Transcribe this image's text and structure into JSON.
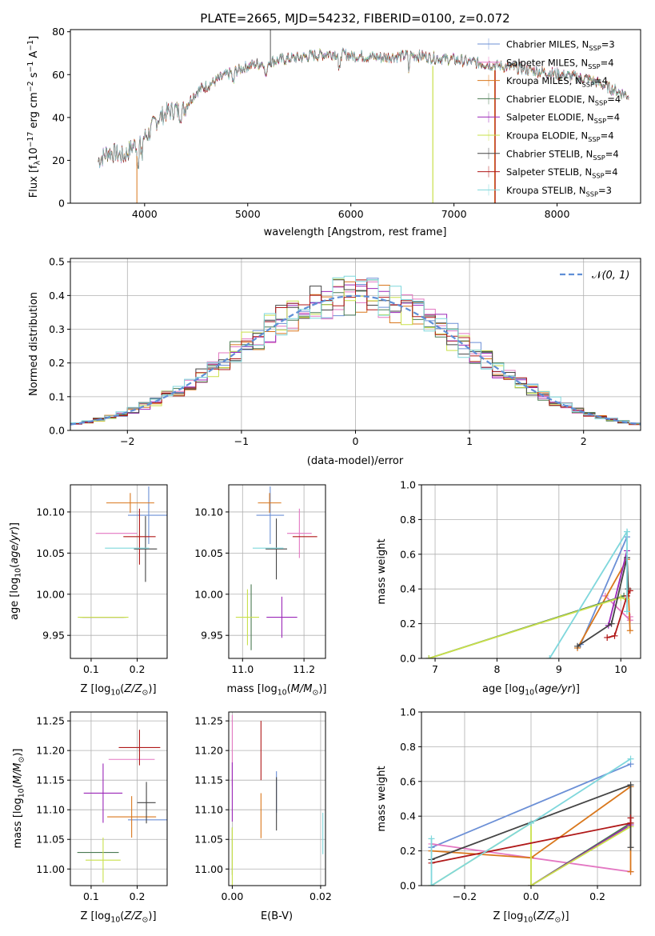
{
  "figure": {
    "title": "PLATE=2665, MJD=54232, FIBERID=0100, z=0.072"
  },
  "colors": {
    "Chabrier MILES": "#6b8fd6",
    "Salpeter MILES": "#e377c2",
    "Kroupa MILES": "#d9771c",
    "Chabrier ELODIE": "#4a7a52",
    "Salpeter ELODIE": "#9b27b8",
    "Kroupa ELODIE": "#c9e04a",
    "Chabrier STELIB": "#444444",
    "Salpeter STELIB": "#b01818",
    "Kroupa STELIB": "#7fd7dc"
  },
  "chart_data": [
    {
      "id": "spectrum",
      "type": "line",
      "xlabel": "wavelength [Angstrom, rest frame]",
      "ylabel": "Flux [f_λ 10^-17 erg cm^-2 s^-1 A^-1]",
      "xlim": [
        3280,
        8810
      ],
      "ylim": [
        0,
        81
      ],
      "xticks": [
        4000,
        5000,
        6000,
        7000,
        8000
      ],
      "yticks": [
        0,
        20,
        40,
        60,
        80
      ],
      "grid": false,
      "legend_position": "top-right",
      "legend": [
        {
          "name": "Chabrier MILES",
          "nssp": "3"
        },
        {
          "name": "Salpeter MILES",
          "nssp": "4"
        },
        {
          "name": "Kroupa MILES",
          "nssp": "4"
        },
        {
          "name": "Chabrier ELODIE",
          "nssp": "4"
        },
        {
          "name": "Salpeter ELODIE",
          "nssp": "4"
        },
        {
          "name": "Kroupa ELODIE",
          "nssp": "4"
        },
        {
          "name": "Chabrier STELIB",
          "nssp": "4"
        },
        {
          "name": "Salpeter STELIB",
          "nssp": "4"
        },
        {
          "name": "Kroupa STELIB",
          "nssp": "3"
        }
      ],
      "continuum": {
        "wavelength": [
          3550,
          3650,
          3800,
          3900,
          4000,
          4050,
          4100,
          4200,
          4300,
          4350,
          4500,
          4800,
          5000,
          5200,
          5500,
          5800,
          6000,
          6300,
          6600,
          7000,
          7300,
          7600,
          7900,
          8300,
          8700
        ],
        "flux": [
          20,
          24,
          22,
          27,
          31,
          33,
          38,
          42,
          44,
          42,
          52,
          60,
          64,
          66,
          68,
          70,
          69,
          68,
          69,
          67,
          65,
          63,
          61,
          58,
          50
        ]
      }
    },
    {
      "id": "residuals",
      "type": "step",
      "xlabel": "(data-model)/error",
      "ylabel": "Normed distribution",
      "xlim": [
        -2.5,
        2.5
      ],
      "ylim": [
        0,
        0.51
      ],
      "xticks": [
        -2,
        -1,
        0,
        1,
        2
      ],
      "yticks": [
        0.0,
        0.1,
        0.2,
        0.3,
        0.4,
        0.5
      ],
      "grid": true,
      "legend_position": "top-right",
      "legend": "N(0,1)",
      "bin_width": 0.1
    },
    {
      "id": "age_vs_Z",
      "type": "scatter",
      "xlabel": "Z [log10(Z/Z⊙)]",
      "ylabel": "age [log10(age/yr)]",
      "xlim": [
        0.055,
        0.265
      ],
      "ylim": [
        9.922,
        10.133
      ],
      "xticks": [
        0.1,
        0.2
      ],
      "yticks": [
        9.95,
        10.0,
        10.05,
        10.1
      ],
      "points": [
        {
          "name": "Chabrier MILES",
          "x": 0.225,
          "y": 10.096,
          "xerr": 0.045,
          "yerr": 0.035
        },
        {
          "name": "Salpeter MILES",
          "x": 0.155,
          "y": 10.074,
          "xerr": 0.045,
          "yerr": 0.0
        },
        {
          "name": "Kroupa MILES",
          "x": 0.185,
          "y": 10.111,
          "xerr": 0.052,
          "yerr": 0.012
        },
        {
          "name": "Chabrier ELODIE",
          "x": 0.126,
          "y": 9.972,
          "xerr": 0.05,
          "yerr": 0.0
        },
        {
          "name": "Salpeter ELODIE",
          "x": 0.126,
          "y": 9.972,
          "xerr": 0.045,
          "yerr": 0.0
        },
        {
          "name": "Kroupa ELODIE",
          "x": 0.126,
          "y": 9.972,
          "xerr": 0.055,
          "yerr": 0.0
        },
        {
          "name": "Chabrier STELIB",
          "x": 0.218,
          "y": 10.055,
          "xerr": 0.025,
          "yerr": 0.04
        },
        {
          "name": "Salpeter STELIB",
          "x": 0.205,
          "y": 10.07,
          "xerr": 0.035,
          "yerr": 0.034
        },
        {
          "name": "Kroupa STELIB",
          "x": 0.178,
          "y": 10.056,
          "xerr": 0.048,
          "yerr": 0.0
        }
      ]
    },
    {
      "id": "age_vs_mass",
      "type": "scatter",
      "xlabel": "mass [log10(M/M⊙)]",
      "ylabel": "",
      "xlim": [
        10.955,
        11.27
      ],
      "ylim": [
        9.922,
        10.133
      ],
      "xticks": [
        11.0,
        11.2
      ],
      "yticks": [
        9.95,
        10.0,
        10.05,
        10.1
      ],
      "points": [
        {
          "name": "Chabrier MILES",
          "x": 11.09,
          "y": 10.096,
          "xerr": 0.045,
          "yerr": 0.035
        },
        {
          "name": "Salpeter MILES",
          "x": 11.185,
          "y": 10.074,
          "xerr": 0.04,
          "yerr": 0.03
        },
        {
          "name": "Kroupa MILES",
          "x": 11.088,
          "y": 10.111,
          "xerr": 0.038,
          "yerr": 0.012
        },
        {
          "name": "Chabrier ELODIE",
          "x": 11.028,
          "y": 9.972,
          "xerr": 0.0,
          "yerr": 0.04
        },
        {
          "name": "Salpeter ELODIE",
          "x": 11.128,
          "y": 9.972,
          "xerr": 0.05,
          "yerr": 0.025
        },
        {
          "name": "Kroupa ELODIE",
          "x": 11.016,
          "y": 9.972,
          "xerr": 0.038,
          "yerr": 0.034
        },
        {
          "name": "Chabrier STELIB",
          "x": 11.11,
          "y": 10.055,
          "xerr": 0.035,
          "yerr": 0.037
        },
        {
          "name": "Salpeter STELIB",
          "x": 11.203,
          "y": 10.07,
          "xerr": 0.04,
          "yerr": 0.0
        },
        {
          "name": "Kroupa STELIB",
          "x": 11.083,
          "y": 10.056,
          "xerr": 0.05,
          "yerr": 0.0
        }
      ]
    },
    {
      "id": "mass_vs_Z",
      "type": "scatter",
      "xlabel": "Z [log10(Z/Z⊙)]",
      "ylabel": "mass [log10(M/M⊙)]",
      "xlim": [
        0.055,
        0.265
      ],
      "ylim": [
        10.972,
        11.265
      ],
      "xticks": [
        0.1,
        0.2
      ],
      "yticks": [
        11.0,
        11.05,
        11.1,
        11.15,
        11.2,
        11.25
      ],
      "points": [
        {
          "name": "Chabrier MILES",
          "x": 0.225,
          "y": 11.083,
          "xerr": 0.045,
          "yerr": 0.0
        },
        {
          "name": "Salpeter MILES",
          "x": 0.188,
          "y": 11.185,
          "xerr": 0.05,
          "yerr": 0.0
        },
        {
          "name": "Kroupa MILES",
          "x": 0.188,
          "y": 11.088,
          "xerr": 0.053,
          "yerr": 0.035
        },
        {
          "name": "Chabrier ELODIE",
          "x": 0.115,
          "y": 11.028,
          "xerr": 0.045,
          "yerr": 0.0
        },
        {
          "name": "Salpeter ELODIE",
          "x": 0.126,
          "y": 11.128,
          "xerr": 0.042,
          "yerr": 0.05
        },
        {
          "name": "Kroupa ELODIE",
          "x": 0.126,
          "y": 11.015,
          "xerr": 0.038,
          "yerr": 0.038
        },
        {
          "name": "Chabrier STELIB",
          "x": 0.22,
          "y": 11.112,
          "xerr": 0.02,
          "yerr": 0.035
        },
        {
          "name": "Salpeter STELIB",
          "x": 0.205,
          "y": 11.205,
          "xerr": 0.045,
          "yerr": 0.03
        },
        {
          "name": "Kroupa STELIB",
          "x": 0.2,
          "y": 11.083,
          "xerr": 0.0,
          "yerr": 0.0
        }
      ]
    },
    {
      "id": "mass_vs_ebv",
      "type": "scatter",
      "xlabel": "E(B-V)",
      "ylabel": "",
      "xlim": [
        -0.0008,
        0.0211
      ],
      "ylim": [
        10.972,
        11.265
      ],
      "xticks": [
        0.0,
        0.02
      ],
      "yticks": [
        11.0,
        11.05,
        11.1,
        11.15,
        11.2,
        11.25
      ],
      "points": [
        {
          "name": "Chabrier MILES",
          "x": 0.01,
          "y": 11.13,
          "xerr": 0.0,
          "yerr": 0.035
        },
        {
          "name": "Salpeter MILES",
          "x": 0.0,
          "y": 11.2,
          "xerr": 0.0,
          "yerr": 0.06
        },
        {
          "name": "Kroupa MILES",
          "x": 0.0065,
          "y": 11.09,
          "xerr": 0.0,
          "yerr": 0.038
        },
        {
          "name": "Chabrier ELODIE",
          "x": 0.0,
          "y": 11.03,
          "xerr": 0.0,
          "yerr": 0.04
        },
        {
          "name": "Salpeter ELODIE",
          "x": 0.0,
          "y": 11.13,
          "xerr": 0.0,
          "yerr": 0.05
        },
        {
          "name": "Kroupa ELODIE",
          "x": 0.0,
          "y": 11.02,
          "xerr": 0.0,
          "yerr": 0.05
        },
        {
          "name": "Chabrier STELIB",
          "x": 0.01,
          "y": 11.11,
          "xerr": 0.0,
          "yerr": 0.045
        },
        {
          "name": "Salpeter STELIB",
          "x": 0.0065,
          "y": 11.2,
          "xerr": 0.0,
          "yerr": 0.05
        },
        {
          "name": "Kroupa STELIB",
          "x": 0.0205,
          "y": 11.06,
          "xerr": 0.0,
          "yerr": 0.035
        }
      ]
    },
    {
      "id": "weight_vs_age",
      "type": "line",
      "xlabel": "age [log10(age/yr)]",
      "ylabel": "mass weight",
      "xlim": [
        6.78,
        10.32
      ],
      "ylim": [
        0,
        1.0
      ],
      "xticks": [
        7,
        8,
        9,
        10
      ],
      "yticks": [
        0.0,
        0.2,
        0.4,
        0.6,
        0.8,
        1.0
      ],
      "grid": true,
      "series": [
        {
          "name": "Chabrier MILES",
          "x": [
            9.35,
            10.1
          ],
          "y": [
            0.08,
            0.7
          ]
        },
        {
          "name": "Salpeter MILES",
          "x": [
            9.75,
            10.15,
            10.15
          ],
          "y": [
            0.36,
            0.22,
            0.24
          ]
        },
        {
          "name": "Kroupa MILES",
          "x": [
            9.3,
            10.1,
            10.15
          ],
          "y": [
            0.06,
            0.57,
            0.16
          ]
        },
        {
          "name": "Chabrier ELODIE",
          "x": [
            6.9,
            10.05
          ],
          "y": [
            0.0,
            0.36
          ]
        },
        {
          "name": "Salpeter ELODIE",
          "x": [
            9.8,
            10.1
          ],
          "y": [
            0.19,
            0.62
          ]
        },
        {
          "name": "Kroupa ELODIE",
          "x": [
            6.9,
            10.0,
            10.1
          ],
          "y": [
            0.0,
            0.35,
            0.34
          ]
        },
        {
          "name": "Chabrier STELIB",
          "x": [
            9.3,
            9.85,
            10.1,
            10.12
          ],
          "y": [
            0.07,
            0.2,
            0.58,
            0.4
          ]
        },
        {
          "name": "Salpeter STELIB",
          "x": [
            9.78,
            9.9,
            10.1,
            10.15
          ],
          "y": [
            0.12,
            0.13,
            0.36,
            0.39
          ]
        },
        {
          "name": "Kroupa STELIB",
          "x": [
            8.85,
            10.1,
            10.1
          ],
          "y": [
            0.0,
            0.73,
            0.27
          ]
        }
      ]
    },
    {
      "id": "weight_vs_Z",
      "type": "line",
      "xlabel": "Z [log10(Z/Z⊙)]",
      "ylabel": "mass weight",
      "xlim": [
        -0.33,
        0.33
      ],
      "ylim": [
        0,
        1.0
      ],
      "xticks": [
        -0.2,
        0.0,
        0.2
      ],
      "yticks": [
        0.0,
        0.2,
        0.4,
        0.6,
        0.8,
        1.0
      ],
      "grid": true,
      "series": [
        {
          "name": "Chabrier MILES",
          "x": [
            -0.3,
            0.3
          ],
          "y": [
            0.22,
            0.7
          ]
        },
        {
          "name": "Salpeter MILES",
          "x": [
            -0.3,
            0.3
          ],
          "y": [
            0.24,
            0.08
          ]
        },
        {
          "name": "Kroupa MILES",
          "x": [
            -0.3,
            0.0,
            0.3,
            0.3
          ],
          "y": [
            0.2,
            0.16,
            0.57,
            0.08
          ]
        },
        {
          "name": "Chabrier ELODIE",
          "x": [
            0.0,
            0.3
          ],
          "y": [
            0.0,
            0.36
          ]
        },
        {
          "name": "Salpeter ELODIE",
          "x": [
            0.0,
            0.3
          ],
          "y": [
            0.0,
            0.35
          ]
        },
        {
          "name": "Kroupa ELODIE",
          "x": [
            -0.3,
            0.0,
            0.0,
            0.3
          ],
          "y": [
            0.0,
            0.36,
            0.0,
            0.34
          ]
        },
        {
          "name": "Chabrier STELIB",
          "x": [
            -0.3,
            0.3,
            0.3
          ],
          "y": [
            0.15,
            0.58,
            0.22
          ]
        },
        {
          "name": "Salpeter STELIB",
          "x": [
            -0.3,
            0.3,
            0.3
          ],
          "y": [
            0.13,
            0.36,
            0.39
          ]
        },
        {
          "name": "Kroupa STELIB",
          "x": [
            -0.3,
            -0.3,
            0.0,
            0.3
          ],
          "y": [
            0.27,
            0.0,
            0.36,
            0.73
          ]
        }
      ]
    }
  ]
}
